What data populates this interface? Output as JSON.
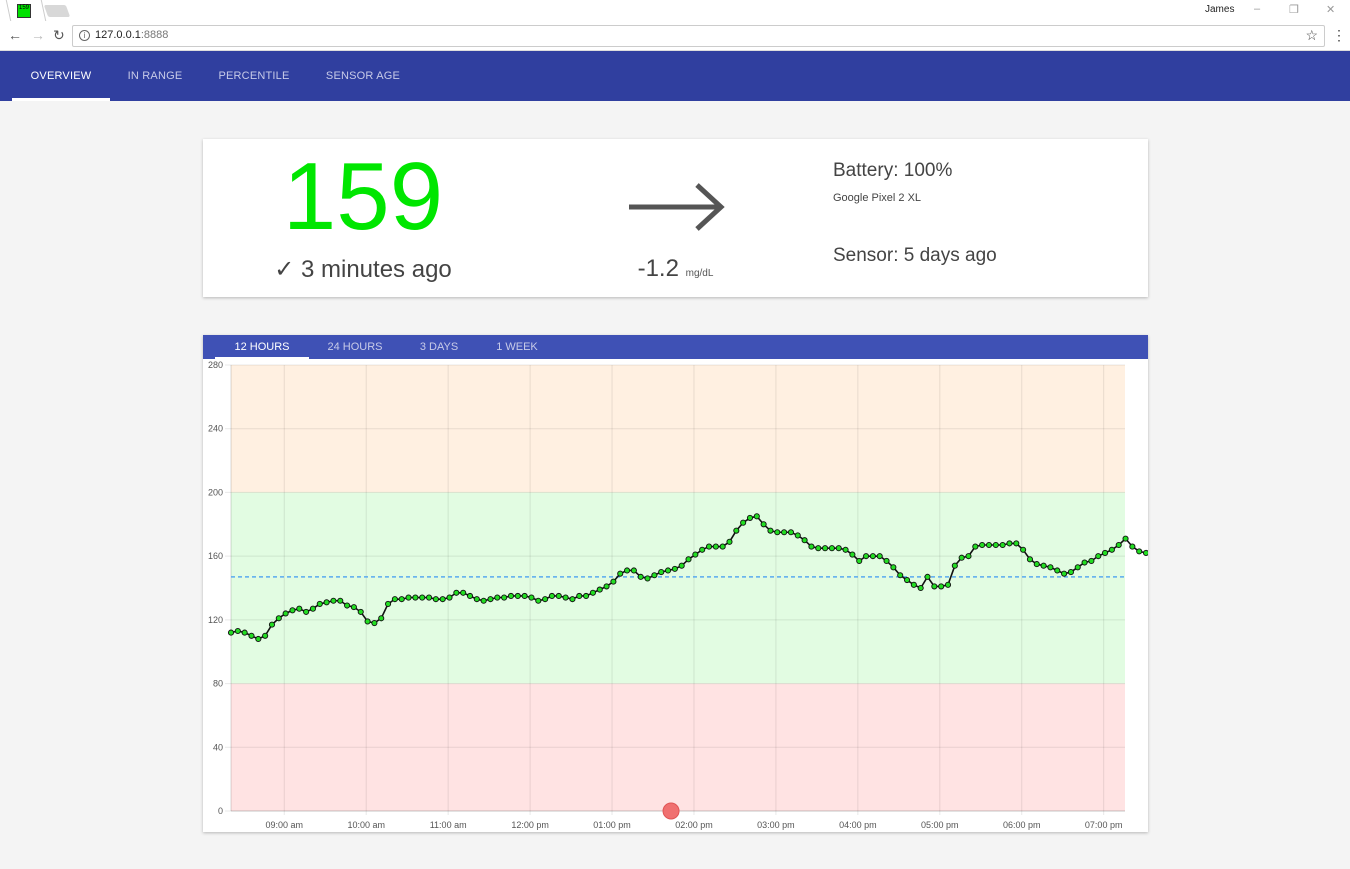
{
  "browser": {
    "favicon_text": "159",
    "profile_name": "James",
    "window_controls": [
      "–",
      "❐",
      "✕"
    ],
    "url_host": "127.0.0.1",
    "url_port": ":8888"
  },
  "nav": {
    "tabs": [
      {
        "label": "OVERVIEW",
        "active": true
      },
      {
        "label": "IN RANGE",
        "active": false
      },
      {
        "label": "PERCENTILE",
        "active": false
      },
      {
        "label": "SENSOR AGE",
        "active": false
      }
    ]
  },
  "summary": {
    "glucose": "159",
    "glucose_color": "#00e600",
    "age": "✓ 3 minutes ago",
    "trend_icon": "arrow-right-icon",
    "delta": "-1.2",
    "delta_unit": "mg/dL",
    "battery": "Battery: 100%",
    "device": "Google Pixel 2 XL",
    "sensor": "Sensor: 5 days ago"
  },
  "range_tabs": [
    {
      "label": "12 HOURS",
      "active": true
    },
    {
      "label": "24 HOURS",
      "active": false
    },
    {
      "label": "3 DAYS",
      "active": false
    },
    {
      "label": "1 WEEK",
      "active": false
    }
  ],
  "chart_data": {
    "type": "scatter",
    "title": "",
    "xlabel": "",
    "ylabel": "",
    "ylim": [
      0,
      280
    ],
    "yticks": [
      0,
      40,
      80,
      120,
      160,
      200,
      240,
      280
    ],
    "x_hours_range": [
      8.35,
      19.26
    ],
    "xticks": [
      {
        "hour": 9,
        "label": "09:00 am"
      },
      {
        "hour": 10,
        "label": "10:00 am"
      },
      {
        "hour": 11,
        "label": "11:00 am"
      },
      {
        "hour": 12,
        "label": "12:00 pm"
      },
      {
        "hour": 13,
        "label": "01:00 pm"
      },
      {
        "hour": 14,
        "label": "02:00 pm"
      },
      {
        "hour": 15,
        "label": "03:00 pm"
      },
      {
        "hour": 16,
        "label": "04:00 pm"
      },
      {
        "hour": 17,
        "label": "05:00 pm"
      },
      {
        "hour": 18,
        "label": "06:00 pm"
      },
      {
        "hour": 19,
        "label": "07:00 pm"
      }
    ],
    "bands": [
      {
        "from": 200,
        "to": 280,
        "color": "#fff0e1"
      },
      {
        "from": 80,
        "to": 200,
        "color": "#e2fce2"
      },
      {
        "from": 0,
        "to": 80,
        "color": "#ffe3e3"
      }
    ],
    "average_line": {
      "value": 147,
      "color": "#5aa9f0"
    },
    "event_marker": {
      "hour": 13.72,
      "value": 0,
      "color": "#f07070"
    },
    "series": [
      {
        "line_color": "#111111",
        "point_color": "#22dd22",
        "start_hour": 8.35,
        "interval_minutes": 5,
        "values": [
          112,
          113,
          112,
          110,
          108,
          110,
          117,
          121,
          124,
          126,
          127,
          125,
          127,
          130,
          131,
          132,
          132,
          129,
          128,
          125,
          119,
          118,
          121,
          130,
          133,
          133,
          134,
          134,
          134,
          134,
          133,
          133,
          134,
          137,
          137,
          135,
          133,
          132,
          133,
          134,
          134,
          135,
          135,
          135,
          134,
          132,
          133,
          135,
          135,
          134,
          133,
          135,
          135,
          137,
          139,
          141,
          144,
          149,
          151,
          151,
          147,
          146,
          148,
          150,
          151,
          152,
          154,
          158,
          161,
          164,
          166,
          166,
          166,
          169,
          176,
          181,
          184,
          185,
          180,
          176,
          175,
          175,
          175,
          173,
          170,
          166,
          165,
          165,
          165,
          165,
          164,
          161,
          157,
          160,
          160,
          160,
          157,
          153,
          148,
          145,
          142,
          140,
          147,
          141,
          141,
          142,
          154,
          159,
          160,
          166,
          167,
          167,
          167,
          167,
          168,
          168,
          164,
          158,
          155,
          154,
          153,
          151,
          149,
          150,
          153,
          156,
          157,
          160,
          162,
          164,
          167,
          171,
          166,
          163,
          162,
          163,
          162,
          160,
          159
        ]
      }
    ]
  }
}
